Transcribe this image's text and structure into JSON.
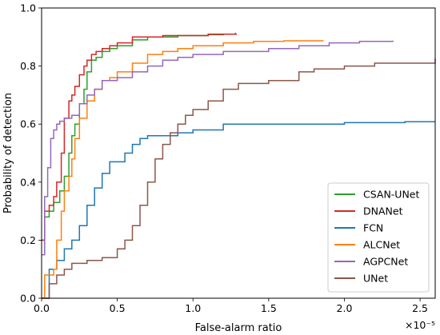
{
  "chart_data": {
    "type": "line",
    "title": "",
    "xlabel": "False-alarm ratio",
    "ylabel": "Probability of detection",
    "x_scale_label": "×10⁻⁵",
    "xlim": [
      0,
      2.6
    ],
    "ylim": [
      0,
      1.0
    ],
    "x_ticks": [
      0.0,
      0.5,
      1.0,
      1.5,
      2.0,
      2.5
    ],
    "x_tick_labels": [
      "0.0",
      "0.5",
      "1.0",
      "1.5",
      "2.0",
      "2.5"
    ],
    "y_ticks": [
      0.0,
      0.2,
      0.4,
      0.6,
      0.8,
      1.0
    ],
    "y_tick_labels": [
      "0.0",
      "0.2",
      "0.4",
      "0.6",
      "0.8",
      "1.0"
    ],
    "grid": false,
    "legend_position": "bottom-right",
    "series": [
      {
        "name": "CSAN-UNet",
        "color": "#2ca02c",
        "x": [
          0.0,
          0.02,
          0.05,
          0.08,
          0.12,
          0.15,
          0.18,
          0.2,
          0.22,
          0.25,
          0.28,
          0.3,
          0.33,
          0.36,
          0.4,
          0.45,
          0.5,
          0.6,
          0.7,
          0.8,
          0.9,
          1.0,
          1.1,
          1.2,
          1.28
        ],
        "y": [
          0.2,
          0.28,
          0.3,
          0.33,
          0.37,
          0.42,
          0.5,
          0.56,
          0.6,
          0.67,
          0.72,
          0.78,
          0.82,
          0.83,
          0.85,
          0.86,
          0.87,
          0.89,
          0.9,
          0.9,
          0.905,
          0.905,
          0.908,
          0.91,
          0.915
        ]
      },
      {
        "name": "DNANet",
        "color": "#d62728",
        "x": [
          0.0,
          0.02,
          0.05,
          0.08,
          0.1,
          0.13,
          0.15,
          0.18,
          0.2,
          0.22,
          0.25,
          0.28,
          0.3,
          0.33,
          0.36,
          0.4,
          0.45,
          0.5,
          0.6,
          0.7,
          0.8,
          0.9,
          1.0,
          1.1,
          1.2,
          1.29
        ],
        "y": [
          0.2,
          0.3,
          0.32,
          0.35,
          0.4,
          0.5,
          0.62,
          0.68,
          0.7,
          0.73,
          0.77,
          0.8,
          0.82,
          0.84,
          0.85,
          0.86,
          0.87,
          0.88,
          0.9,
          0.9,
          0.905,
          0.905,
          0.905,
          0.91,
          0.91,
          0.91
        ]
      },
      {
        "name": "FCN",
        "color": "#1f77b4",
        "x": [
          0.0,
          0.05,
          0.1,
          0.15,
          0.2,
          0.25,
          0.3,
          0.35,
          0.4,
          0.45,
          0.5,
          0.55,
          0.6,
          0.65,
          0.7,
          0.8,
          0.9,
          1.0,
          1.2,
          1.5,
          1.8,
          2.0,
          2.2,
          2.4,
          2.6
        ],
        "y": [
          0.0,
          0.1,
          0.13,
          0.17,
          0.2,
          0.25,
          0.32,
          0.38,
          0.43,
          0.47,
          0.47,
          0.5,
          0.53,
          0.55,
          0.56,
          0.56,
          0.57,
          0.58,
          0.6,
          0.6,
          0.6,
          0.605,
          0.605,
          0.608,
          0.608
        ]
      },
      {
        "name": "ALCNet",
        "color": "#ff7f0e",
        "x": [
          0.0,
          0.02,
          0.05,
          0.08,
          0.1,
          0.13,
          0.15,
          0.18,
          0.2,
          0.22,
          0.25,
          0.3,
          0.35,
          0.4,
          0.45,
          0.5,
          0.6,
          0.7,
          0.8,
          0.9,
          1.0,
          1.2,
          1.4,
          1.6,
          1.86
        ],
        "y": [
          0.0,
          0.08,
          0.08,
          0.1,
          0.2,
          0.3,
          0.37,
          0.42,
          0.48,
          0.55,
          0.62,
          0.68,
          0.72,
          0.75,
          0.76,
          0.78,
          0.81,
          0.84,
          0.85,
          0.86,
          0.87,
          0.88,
          0.885,
          0.887,
          0.888
        ]
      },
      {
        "name": "AGPCNet",
        "color": "#9467bd",
        "x": [
          0.0,
          0.02,
          0.04,
          0.06,
          0.08,
          0.1,
          0.12,
          0.15,
          0.2,
          0.25,
          0.3,
          0.35,
          0.4,
          0.5,
          0.6,
          0.7,
          0.8,
          0.9,
          1.0,
          1.2,
          1.5,
          1.7,
          1.9,
          2.1,
          2.32
        ],
        "y": [
          0.15,
          0.35,
          0.45,
          0.55,
          0.58,
          0.6,
          0.61,
          0.62,
          0.63,
          0.67,
          0.7,
          0.72,
          0.75,
          0.76,
          0.78,
          0.8,
          0.82,
          0.83,
          0.84,
          0.85,
          0.86,
          0.87,
          0.88,
          0.885,
          0.888
        ]
      },
      {
        "name": "UNet",
        "color": "#8c564b",
        "x": [
          0.0,
          0.05,
          0.1,
          0.15,
          0.2,
          0.3,
          0.4,
          0.5,
          0.55,
          0.6,
          0.65,
          0.7,
          0.75,
          0.8,
          0.85,
          0.9,
          0.95,
          1.0,
          1.1,
          1.2,
          1.3,
          1.5,
          1.6,
          1.7,
          1.8,
          2.0,
          2.2,
          2.4,
          2.6
        ],
        "y": [
          0.0,
          0.05,
          0.08,
          0.1,
          0.12,
          0.13,
          0.14,
          0.17,
          0.2,
          0.25,
          0.32,
          0.4,
          0.48,
          0.53,
          0.57,
          0.6,
          0.63,
          0.65,
          0.68,
          0.72,
          0.74,
          0.75,
          0.75,
          0.78,
          0.79,
          0.8,
          0.81,
          0.81,
          0.825
        ]
      }
    ]
  }
}
